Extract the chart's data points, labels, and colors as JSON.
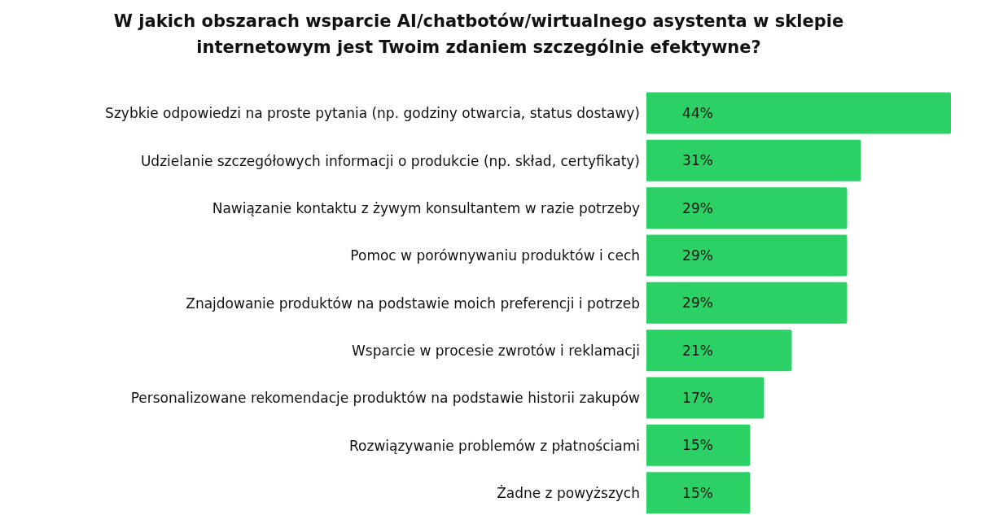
{
  "chart_data": {
    "type": "bar",
    "orientation": "horizontal",
    "title": "W jakich obszarach wsparcie AI/chatbotów/wirtualnego asystenta w sklepie internetowym jest Twoim zdaniem szczególnie efektywne?",
    "categories": [
      "Szybkie odpowiedzi na proste pytania (np. godziny otwarcia, status dostawy)",
      "Udzielanie szczegółowych informacji o produkcie (np. skład, certyﬁkaty)",
      "Nawiązanie kontaktu z żywym konsultantem w razie potrzeby",
      "Pomoc w porównywaniu produktów i cech",
      "Znajdowanie produktów na podstawie moich preferencji i potrzeb",
      "Wsparcie w procesie zwrotów i reklamacji",
      "Personalizowane rekomendacje produktów na podstawie historii zakupów",
      "Rozwiązywanie problemów z płatnościami",
      "Żadne z powyższych"
    ],
    "values": [
      44,
      31,
      29,
      29,
      29,
      21,
      17,
      15,
      15
    ],
    "value_labels": [
      "44%",
      "31%",
      "29%",
      "29%",
      "29%",
      "21%",
      "17%",
      "15%",
      "15%"
    ],
    "color": "#2bd165",
    "grid": false,
    "legend": false
  }
}
